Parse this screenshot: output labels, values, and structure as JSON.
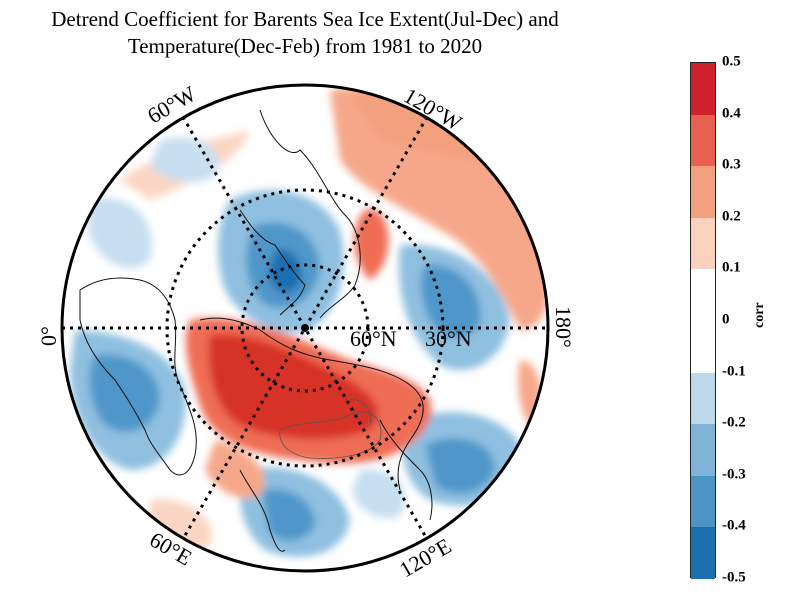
{
  "title_line1": "Detrend Coefficient for Barents Sea Ice Extent(Jul-Dec) and",
  "title_line2": "Temperature(Dec-Feb) from 1981 to 2020",
  "longitude_labels": {
    "w60": "60°W",
    "w120": "120°W",
    "e0": "0°",
    "e180": "180°",
    "e60": "60°E",
    "e120": "120°E"
  },
  "latitude_labels": {
    "n60": "60°N",
    "n30": "30°N"
  },
  "colorbar": {
    "label": "corr",
    "ticks": [
      "0.5",
      "0.4",
      "0.3",
      "0.2",
      "0.1",
      "0",
      "-0.1",
      "-0.2",
      "-0.3",
      "-0.4",
      "-0.5"
    ],
    "colors": [
      "#d1202d",
      "#e8604e",
      "#f3a07f",
      "#f9d1bd",
      "#ffffff",
      "#ffffff",
      "#bcd9ea",
      "#7fb4d8",
      "#4a95c6",
      "#1a6fb0"
    ]
  },
  "colors": {
    "red_strong": "#d73027",
    "red_mid": "#ef6d55",
    "red_light": "#f6a789",
    "red_pale": "#fbd6c4",
    "blue_pale": "#c7dff0",
    "blue_light": "#8fc0e0",
    "blue_mid": "#4f97c9",
    "blue_strong": "#1f6fb2"
  }
}
